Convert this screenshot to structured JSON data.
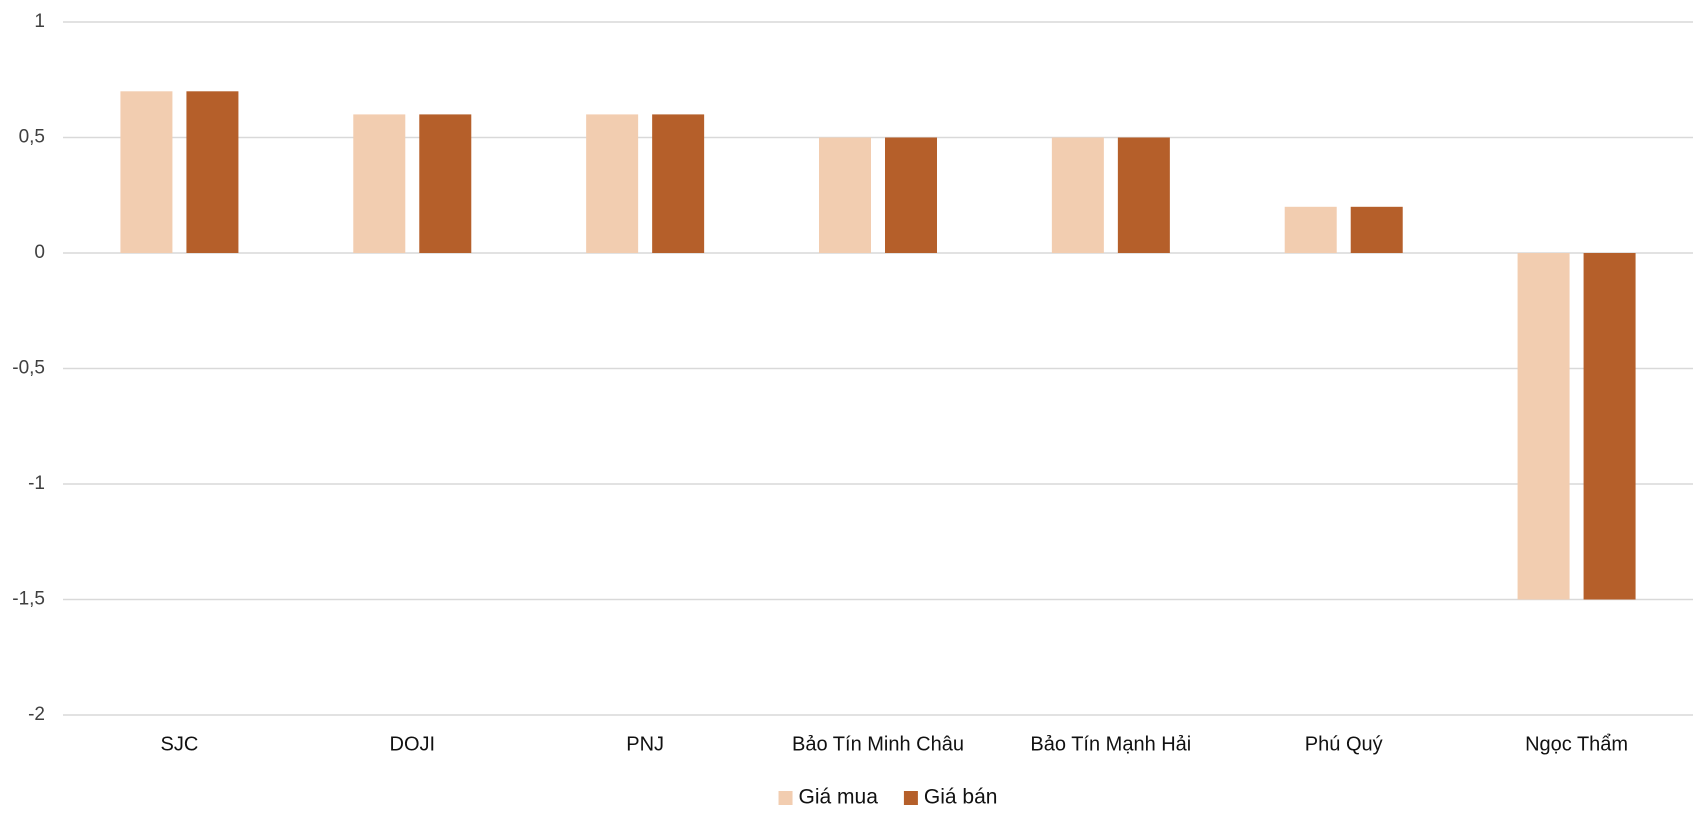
{
  "chart_data": {
    "type": "bar",
    "categories": [
      "SJC",
      "DOJI",
      "PNJ",
      "Bảo Tín Minh Châu",
      "Bảo Tín Mạnh Hải",
      "Phú Quý",
      "Ngọc Thẩm"
    ],
    "series": [
      {
        "name": "Giá mua",
        "color": "#f2cdb0",
        "values": [
          0.7,
          0.6,
          0.6,
          0.5,
          0.5,
          0.2,
          -1.5
        ]
      },
      {
        "name": "Giá bán",
        "color": "#b55f2a",
        "values": [
          0.7,
          0.6,
          0.6,
          0.5,
          0.5,
          0.2,
          -1.5
        ]
      }
    ],
    "ylim": [
      -2,
      1
    ],
    "yticks": [
      -2,
      {
        "value": -1.5,
        "label": "-1,5"
      },
      -1,
      {
        "value": -0.5,
        "label": "-0,5"
      },
      0,
      {
        "value": 0.5,
        "label": "0,5"
      },
      1
    ],
    "grid": true,
    "legend": "bottom"
  }
}
